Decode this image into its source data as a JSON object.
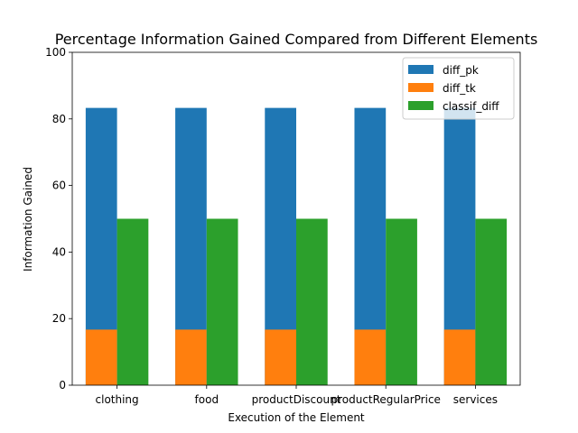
{
  "chart_data": {
    "type": "bar",
    "title": "Percentage Information Gained Compared from Different Elements",
    "xlabel": "Execution of the Element",
    "ylabel": "Information Gained",
    "categories": [
      "clothing",
      "food",
      "productDiscount",
      "productRegularPrice",
      "services"
    ],
    "series": [
      {
        "name": "diff_pk",
        "values": [
          83.3,
          83.3,
          83.3,
          83.3,
          83.3
        ],
        "color": "#1f77b4",
        "stacked_on": "diff_tk"
      },
      {
        "name": "diff_tk",
        "values": [
          16.7,
          16.7,
          16.7,
          16.7,
          16.7
        ],
        "color": "#ff7f0e"
      },
      {
        "name": "classif_diff",
        "values": [
          50,
          50,
          50,
          50,
          50
        ],
        "color": "#2ca02c"
      }
    ],
    "ylim": [
      0,
      100
    ],
    "yticks": [
      0,
      20,
      40,
      60,
      80,
      100
    ],
    "grid": false,
    "legend": "top-right"
  }
}
